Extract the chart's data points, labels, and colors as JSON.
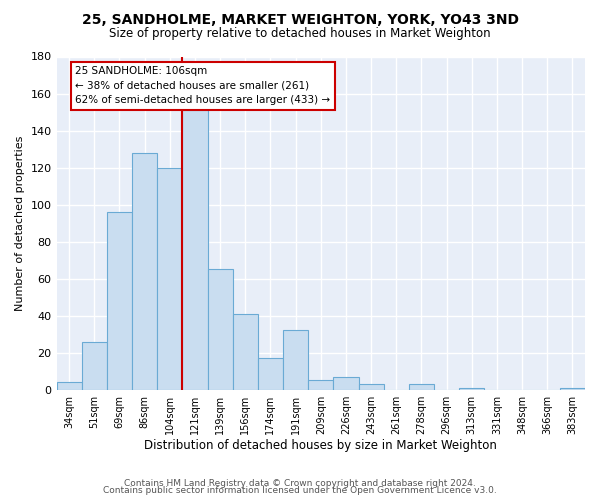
{
  "title": "25, SANDHOLME, MARKET WEIGHTON, YORK, YO43 3ND",
  "subtitle": "Size of property relative to detached houses in Market Weighton",
  "xlabel": "Distribution of detached houses by size in Market Weighton",
  "ylabel": "Number of detached properties",
  "bin_labels": [
    "34sqm",
    "51sqm",
    "69sqm",
    "86sqm",
    "104sqm",
    "121sqm",
    "139sqm",
    "156sqm",
    "174sqm",
    "191sqm",
    "209sqm",
    "226sqm",
    "243sqm",
    "261sqm",
    "278sqm",
    "296sqm",
    "313sqm",
    "331sqm",
    "348sqm",
    "366sqm",
    "383sqm"
  ],
  "bar_values": [
    4,
    26,
    96,
    128,
    120,
    151,
    65,
    41,
    17,
    32,
    5,
    7,
    3,
    0,
    3,
    0,
    1,
    0,
    0,
    0,
    1
  ],
  "bar_color": "#c9ddf0",
  "bar_edge_color": "#6aaad4",
  "ylim": [
    0,
    180
  ],
  "yticks": [
    0,
    20,
    40,
    60,
    80,
    100,
    120,
    140,
    160,
    180
  ],
  "marker_label": "25 SANDHOLME: 106sqm",
  "annotation_line1": "← 38% of detached houses are smaller (261)",
  "annotation_line2": "62% of semi-detached houses are larger (433) →",
  "annotation_box_color": "#ffffff",
  "annotation_border_color": "#cc0000",
  "vline_color": "#cc0000",
  "figure_bg": "#ffffff",
  "axes_bg": "#e8eef8",
  "grid_color": "#ffffff",
  "footer_line1": "Contains HM Land Registry data © Crown copyright and database right 2024.",
  "footer_line2": "Contains public sector information licensed under the Open Government Licence v3.0."
}
